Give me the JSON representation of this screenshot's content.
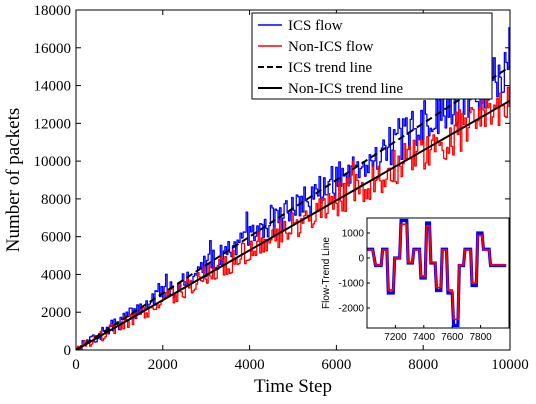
{
  "chart_data": [
    {
      "type": "line",
      "title": "",
      "xlabel": "Time Step",
      "ylabel": "Number of packets",
      "xlim": [
        0,
        10000
      ],
      "ylim": [
        0,
        18000
      ],
      "xticks": [
        "0",
        "2000",
        "4000",
        "6000",
        "8000",
        "10000"
      ],
      "yticks": [
        "0",
        "2000",
        "4000",
        "6000",
        "8000",
        "10000",
        "12000",
        "14000",
        "16000",
        "18000"
      ],
      "legend_position": "top-right",
      "series": [
        {
          "name": "ICS flow",
          "color": "#0000ff",
          "style": "solid",
          "trend_slope": 1.5,
          "noise": 1400,
          "seed": 7
        },
        {
          "name": "Non-ICS flow",
          "color": "#ff0000",
          "style": "solid",
          "trend_slope": 1.32,
          "noise": 1300,
          "seed": 19
        },
        {
          "name": "ICS trend line",
          "color": "#000000",
          "style": "dashed",
          "x": [
            0,
            10000
          ],
          "y": [
            0,
            15000
          ]
        },
        {
          "name": "Non-ICS trend line",
          "color": "#000000",
          "style": "solid",
          "x": [
            0,
            10000
          ],
          "y": [
            0,
            13200
          ]
        }
      ]
    },
    {
      "type": "line",
      "title": "",
      "xlabel": "",
      "ylabel": "Flow-Trend Line",
      "xlim": [
        7000,
        8000
      ],
      "ylim": [
        -2800,
        1600
      ],
      "xticks": [
        "7200",
        "7400",
        "7600",
        "7800"
      ],
      "yticks": [
        "1000",
        "0",
        "-1000",
        "-2000"
      ],
      "series": [
        {
          "color": "#0000ff",
          "x": [
            7000,
            7040,
            7060,
            7100,
            7110,
            7140,
            7150,
            7185,
            7195,
            7230,
            7240,
            7280,
            7290,
            7320,
            7330,
            7370,
            7380,
            7410,
            7420,
            7440,
            7450,
            7480,
            7490,
            7520,
            7530,
            7560,
            7570,
            7600,
            7610,
            7640,
            7650,
            7680,
            7690,
            7730,
            7740,
            7770,
            7780,
            7810,
            7820,
            7860,
            7870,
            7910,
            7920,
            7980
          ],
          "y": [
            350,
            350,
            -300,
            -300,
            350,
            350,
            -1400,
            -1400,
            0,
            0,
            1500,
            1500,
            -200,
            -200,
            350,
            350,
            -800,
            -800,
            1400,
            1400,
            -200,
            -200,
            -1300,
            -1300,
            350,
            350,
            -1400,
            -1400,
            -2700,
            -2700,
            -300,
            -300,
            350,
            350,
            -1100,
            -1100,
            1000,
            1000,
            350,
            350,
            -300,
            -300,
            -300,
            -300
          ]
        },
        {
          "color": "#ff0000",
          "x": [
            7000,
            7040,
            7060,
            7100,
            7110,
            7140,
            7150,
            7185,
            7195,
            7230,
            7240,
            7280,
            7290,
            7320,
            7330,
            7370,
            7380,
            7410,
            7420,
            7440,
            7450,
            7480,
            7490,
            7520,
            7530,
            7560,
            7570,
            7600,
            7610,
            7640,
            7650,
            7680,
            7690,
            7730,
            7740,
            7770,
            7780,
            7810,
            7820,
            7860,
            7870,
            7910,
            7920,
            7980
          ],
          "y": [
            330,
            330,
            -280,
            -280,
            330,
            330,
            -1280,
            -1280,
            0,
            0,
            1350,
            1350,
            -180,
            -180,
            330,
            330,
            -720,
            -720,
            1280,
            1280,
            -180,
            -180,
            -1180,
            -1180,
            330,
            330,
            -1280,
            -1280,
            -2450,
            -2450,
            -280,
            -280,
            330,
            330,
            -1000,
            -1000,
            900,
            900,
            330,
            330,
            -280,
            -280,
            -280,
            -280
          ]
        }
      ]
    }
  ]
}
